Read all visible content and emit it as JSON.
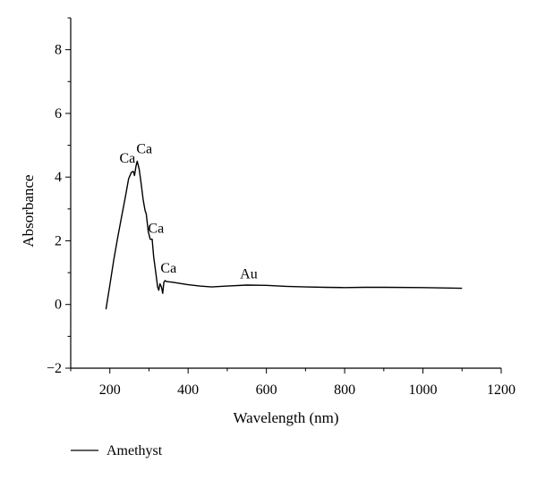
{
  "chart_data": {
    "type": "line",
    "xlabel": "Wavelength (nm)",
    "ylabel": "Absorbance",
    "xlim": [
      100,
      1200
    ],
    "ylim": [
      -2,
      9
    ],
    "x_ticks": [
      200,
      400,
      600,
      800,
      1000,
      1200
    ],
    "x_tick_labels": [
      "200",
      "400",
      "600",
      "800",
      "1000",
      "1200"
    ],
    "y_ticks": [
      -2,
      0,
      2,
      4,
      6,
      8
    ],
    "y_tick_labels": [
      "−2",
      "0",
      "2",
      "4",
      "6",
      "8"
    ],
    "grid": false,
    "legend_position": "bottom-left",
    "series": [
      {
        "name": "Amethyst",
        "color": "#000000",
        "x": [
          190,
          200,
          210,
          220,
          230,
          240,
          248,
          255,
          260,
          263,
          267,
          270,
          275,
          280,
          285,
          290,
          293,
          298,
          303,
          308,
          312,
          318,
          322,
          325,
          328,
          332,
          335,
          338,
          341,
          345,
          360,
          380,
          400,
          430,
          460,
          500,
          550,
          600,
          650,
          700,
          750,
          800,
          850,
          900,
          1000,
          1100
        ],
        "y": [
          -0.15,
          0.6,
          1.4,
          2.1,
          2.75,
          3.4,
          3.95,
          4.15,
          4.18,
          4.05,
          4.35,
          4.5,
          4.25,
          3.8,
          3.3,
          2.95,
          2.85,
          2.3,
          2.05,
          2.05,
          1.5,
          0.95,
          0.55,
          0.45,
          0.65,
          0.55,
          0.35,
          0.7,
          0.75,
          0.72,
          0.7,
          0.66,
          0.62,
          0.58,
          0.55,
          0.58,
          0.61,
          0.6,
          0.57,
          0.55,
          0.54,
          0.53,
          0.54,
          0.54,
          0.53,
          0.51
        ]
      }
    ],
    "annotations": [
      {
        "text": "Ca",
        "x": 245,
        "y": 4.45
      },
      {
        "text": "Ca",
        "x": 288,
        "y": 4.75
      },
      {
        "text": "Ca",
        "x": 318,
        "y": 2.25
      },
      {
        "text": "Ca",
        "x": 350,
        "y": 1.0
      },
      {
        "text": "Au",
        "x": 555,
        "y": 0.82
      }
    ]
  }
}
